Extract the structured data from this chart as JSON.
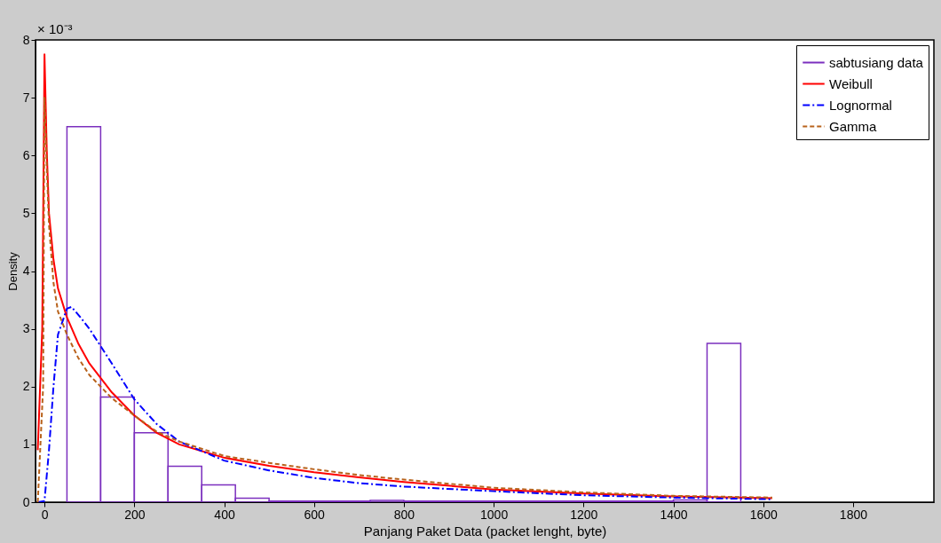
{
  "chart_data": {
    "type": "histogram",
    "xlabel": "Panjang Paket Data (packet lenght, byte)",
    "ylabel": "Density",
    "annotations": [
      "× 10⁻³"
    ],
    "xlim": [
      -20,
      1980
    ],
    "xticks": [
      0,
      200,
      400,
      600,
      800,
      1000,
      1200,
      1400,
      1600,
      1800
    ],
    "ylim": [
      0,
      8
    ],
    "yticks": [
      0,
      1,
      2,
      3,
      4,
      5,
      6,
      7,
      8
    ],
    "legend": "top right",
    "series": [
      {
        "name": "sabtusiang data",
        "color": "#7b2fbe",
        "bins": [
          50,
          125,
          200,
          275,
          350,
          425,
          500,
          575,
          650,
          725,
          800,
          875,
          950,
          1025,
          1100,
          1175,
          1250,
          1325,
          1400,
          1475,
          1550
        ],
        "values": [
          6.5,
          1.82,
          1.2,
          0.62,
          0.3,
          0.07,
          0.02,
          0.02,
          0.02,
          0.03,
          0.02,
          0.02,
          0.02,
          0.02,
          0.02,
          0.02,
          0.02,
          0.02,
          0.04,
          2.75
        ]
      },
      {
        "name": "Weibull",
        "type": "line",
        "color": "#ff0000",
        "line_style": "solid",
        "x": [
          -15,
          -5,
          0,
          5,
          10,
          20,
          30,
          50,
          75,
          100,
          150,
          200,
          250,
          300,
          400,
          500,
          600,
          700,
          800,
          1000,
          1200,
          1400,
          1620
        ],
        "values": [
          0.9,
          3,
          7.75,
          6.1,
          5,
          4.2,
          3.7,
          3.2,
          2.75,
          2.4,
          1.9,
          1.5,
          1.2,
          1.0,
          0.77,
          0.63,
          0.52,
          0.43,
          0.35,
          0.22,
          0.15,
          0.1,
          0.07
        ]
      },
      {
        "name": "Lognormal",
        "type": "line",
        "color": "#0000ff",
        "line_style": "dashdot",
        "x": [
          -15,
          0,
          10,
          20,
          30,
          50,
          60,
          80,
          100,
          150,
          200,
          250,
          300,
          400,
          500,
          600,
          700,
          800,
          1000,
          1200,
          1400,
          1620
        ],
        "values": [
          0,
          0.02,
          0.9,
          2.0,
          2.9,
          3.35,
          3.38,
          3.2,
          3.0,
          2.4,
          1.78,
          1.35,
          1.05,
          0.72,
          0.55,
          0.42,
          0.33,
          0.27,
          0.19,
          0.12,
          0.08,
          0.05
        ]
      },
      {
        "name": "Gamma",
        "type": "line",
        "color": "#b8621b",
        "line_style": "dashed",
        "x": [
          -15,
          -3,
          0,
          5,
          10,
          20,
          30,
          50,
          75,
          100,
          150,
          200,
          250,
          300,
          400,
          500,
          600,
          700,
          800,
          1000,
          1200,
          1400,
          1620
        ],
        "values": [
          0,
          2,
          7.0,
          5.8,
          4.8,
          3.8,
          3.3,
          2.9,
          2.5,
          2.2,
          1.8,
          1.5,
          1.22,
          1.05,
          0.8,
          0.68,
          0.57,
          0.47,
          0.39,
          0.25,
          0.17,
          0.11,
          0.08
        ]
      }
    ]
  }
}
